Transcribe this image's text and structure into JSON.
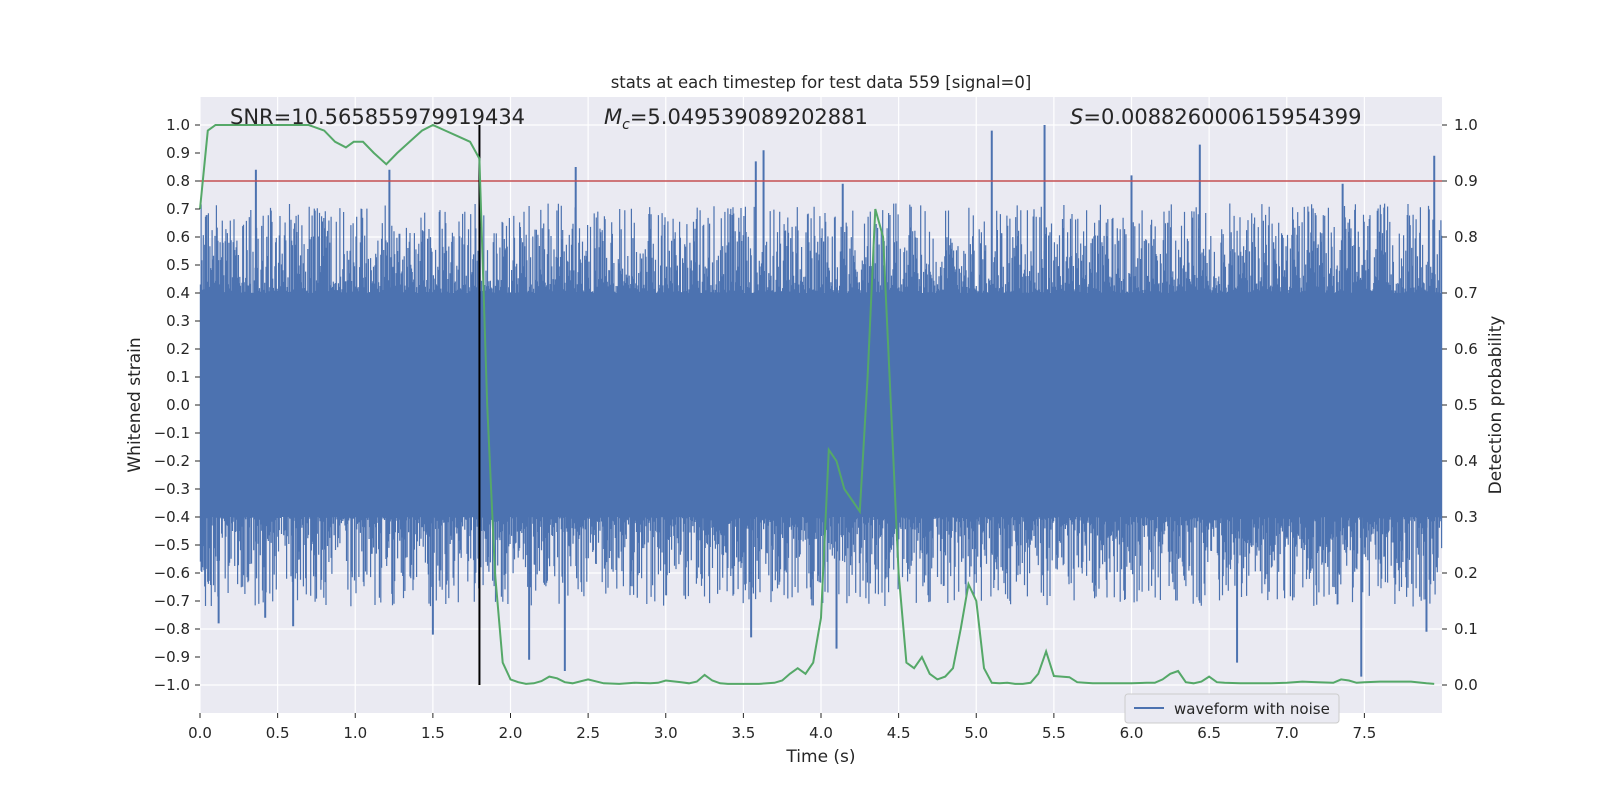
{
  "chart_data": {
    "type": "line",
    "title": "stats at each timestep for test data 559 [signal=0]",
    "xlabel": "Time (s)",
    "ylabel_left": "Whitened strain",
    "ylabel_right": "Detection probability",
    "xlim": [
      0.0,
      8.0
    ],
    "ylim_left": [
      -1.1,
      1.1
    ],
    "ylim_right": [
      -0.05,
      1.05
    ],
    "xticks": [
      0.0,
      0.5,
      1.0,
      1.5,
      2.0,
      2.5,
      3.0,
      3.5,
      4.0,
      4.5,
      5.0,
      5.5,
      6.0,
      6.5,
      7.0,
      7.5
    ],
    "xtick_labels": [
      "0.0",
      "0.5",
      "1.0",
      "1.5",
      "2.0",
      "2.5",
      "3.0",
      "3.5",
      "4.0",
      "4.5",
      "5.0",
      "5.5",
      "6.0",
      "6.5",
      "7.0",
      "7.5"
    ],
    "yticks_left": [
      1.0,
      0.9,
      0.8,
      0.7,
      0.6,
      0.5,
      0.4,
      0.3,
      0.2,
      0.1,
      0.0,
      -0.1,
      -0.2,
      -0.3,
      -0.4,
      -0.5,
      -0.6,
      -0.7,
      -0.8,
      -0.9,
      -1.0
    ],
    "ytick_labels_left": [
      "1.0",
      "0.9",
      "0.8",
      "0.7",
      "0.6",
      "0.5",
      "0.4",
      "0.3",
      "0.2",
      "0.1",
      "0.0",
      "−0.1",
      "−0.2",
      "−0.3",
      "−0.4",
      "−0.5",
      "−0.6",
      "−0.7",
      "−0.8",
      "−0.9",
      "−1.0"
    ],
    "yticks_right": [
      1.0,
      0.9,
      0.8,
      0.7,
      0.6,
      0.5,
      0.4,
      0.3,
      0.2,
      0.1,
      0.0
    ],
    "ytick_labels_right": [
      "1.0",
      "0.9",
      "0.8",
      "0.7",
      "0.6",
      "0.5",
      "0.4",
      "0.3",
      "0.2",
      "0.1",
      "0.0"
    ],
    "annotations": {
      "snr": "SNR=10.565855979919434",
      "mc_symbol": "M",
      "mc_sub": "c",
      "mc_value": "=5.049539089202881",
      "s_symbol": "S",
      "s_value": "=0.008826000615954399"
    },
    "threshold": {
      "value": 0.9,
      "axis": "right",
      "color": "#c44e52"
    },
    "vline": {
      "x": 1.8,
      "color": "#000000"
    },
    "legend": {
      "label": "waveform with noise",
      "placement": "lower-right"
    },
    "series": [
      {
        "name": "waveform with noise",
        "axis": "left",
        "color": "#4c72b0",
        "kind": "noise",
        "dense_band": [
          -0.4,
          0.4
        ],
        "typical_extent": [
          -0.6,
          0.6
        ],
        "peak_spikes": [
          {
            "x": 0.36,
            "y": 0.84
          },
          {
            "x": 1.22,
            "y": 0.84
          },
          {
            "x": 2.42,
            "y": 0.85
          },
          {
            "x": 3.58,
            "y": 0.87
          },
          {
            "x": 3.63,
            "y": 0.91
          },
          {
            "x": 4.14,
            "y": 0.79
          },
          {
            "x": 5.1,
            "y": 0.98
          },
          {
            "x": 5.44,
            "y": 1.0
          },
          {
            "x": 6.0,
            "y": 0.82
          },
          {
            "x": 6.44,
            "y": 0.93
          },
          {
            "x": 7.36,
            "y": 0.79
          },
          {
            "x": 7.95,
            "y": 0.89
          }
        ],
        "trough_spikes": [
          {
            "x": 0.12,
            "y": -0.78
          },
          {
            "x": 0.42,
            "y": -0.76
          },
          {
            "x": 0.6,
            "y": -0.79
          },
          {
            "x": 1.5,
            "y": -0.82
          },
          {
            "x": 2.12,
            "y": -0.91
          },
          {
            "x": 2.35,
            "y": -0.95
          },
          {
            "x": 3.55,
            "y": -0.83
          },
          {
            "x": 4.1,
            "y": -0.87
          },
          {
            "x": 6.68,
            "y": -0.92
          },
          {
            "x": 7.48,
            "y": -0.97
          },
          {
            "x": 7.9,
            "y": -0.81
          }
        ]
      },
      {
        "name": "detection probability",
        "axis": "right",
        "color": "#55a868",
        "x": [
          0.0,
          0.05,
          0.1,
          0.2,
          0.3,
          0.4,
          0.5,
          0.6,
          0.7,
          0.8,
          0.87,
          0.94,
          0.99,
          1.05,
          1.12,
          1.2,
          1.27,
          1.35,
          1.43,
          1.5,
          1.58,
          1.66,
          1.74,
          1.8,
          1.85,
          1.9,
          1.95,
          2.0,
          2.05,
          2.1,
          2.15,
          2.2,
          2.25,
          2.3,
          2.35,
          2.4,
          2.5,
          2.6,
          2.7,
          2.8,
          2.9,
          2.95,
          3.0,
          3.1,
          3.15,
          3.2,
          3.25,
          3.3,
          3.35,
          3.4,
          3.5,
          3.6,
          3.7,
          3.75,
          3.8,
          3.85,
          3.9,
          3.95,
          4.0,
          4.05,
          4.1,
          4.15,
          4.2,
          4.25,
          4.3,
          4.35,
          4.4,
          4.45,
          4.5,
          4.55,
          4.6,
          4.65,
          4.7,
          4.75,
          4.8,
          4.85,
          4.9,
          4.95,
          5.0,
          5.05,
          5.1,
          5.15,
          5.2,
          5.25,
          5.3,
          5.35,
          5.4,
          5.45,
          5.5,
          5.55,
          5.6,
          5.65,
          5.7,
          5.75,
          5.8,
          5.9,
          6.0,
          6.1,
          6.15,
          6.2,
          6.25,
          6.3,
          6.35,
          6.4,
          6.45,
          6.5,
          6.55,
          6.6,
          6.7,
          6.8,
          6.9,
          7.0,
          7.1,
          7.2,
          7.3,
          7.35,
          7.4,
          7.45,
          7.5,
          7.6,
          7.7,
          7.8,
          7.9,
          7.95
        ],
        "values": [
          0.85,
          0.99,
          1.0,
          1.0,
          1.0,
          1.0,
          1.0,
          1.0,
          1.0,
          0.99,
          0.97,
          0.96,
          0.97,
          0.97,
          0.95,
          0.93,
          0.95,
          0.97,
          0.99,
          1.0,
          0.99,
          0.98,
          0.97,
          0.94,
          0.5,
          0.2,
          0.04,
          0.01,
          0.005,
          0.002,
          0.003,
          0.007,
          0.015,
          0.012,
          0.005,
          0.003,
          0.01,
          0.003,
          0.002,
          0.004,
          0.003,
          0.004,
          0.008,
          0.005,
          0.003,
          0.006,
          0.018,
          0.008,
          0.003,
          0.002,
          0.002,
          0.002,
          0.004,
          0.008,
          0.02,
          0.03,
          0.02,
          0.04,
          0.12,
          0.42,
          0.4,
          0.35,
          0.33,
          0.31,
          0.55,
          0.85,
          0.8,
          0.5,
          0.2,
          0.04,
          0.03,
          0.05,
          0.02,
          0.01,
          0.015,
          0.03,
          0.1,
          0.18,
          0.15,
          0.03,
          0.004,
          0.003,
          0.004,
          0.002,
          0.002,
          0.004,
          0.02,
          0.06,
          0.016,
          0.015,
          0.014,
          0.005,
          0.004,
          0.003,
          0.003,
          0.003,
          0.003,
          0.004,
          0.004,
          0.01,
          0.02,
          0.025,
          0.005,
          0.003,
          0.006,
          0.015,
          0.005,
          0.004,
          0.003,
          0.003,
          0.003,
          0.004,
          0.006,
          0.005,
          0.004,
          0.01,
          0.008,
          0.004,
          0.005,
          0.006,
          0.006,
          0.006,
          0.003,
          0.002
        ]
      }
    ]
  }
}
